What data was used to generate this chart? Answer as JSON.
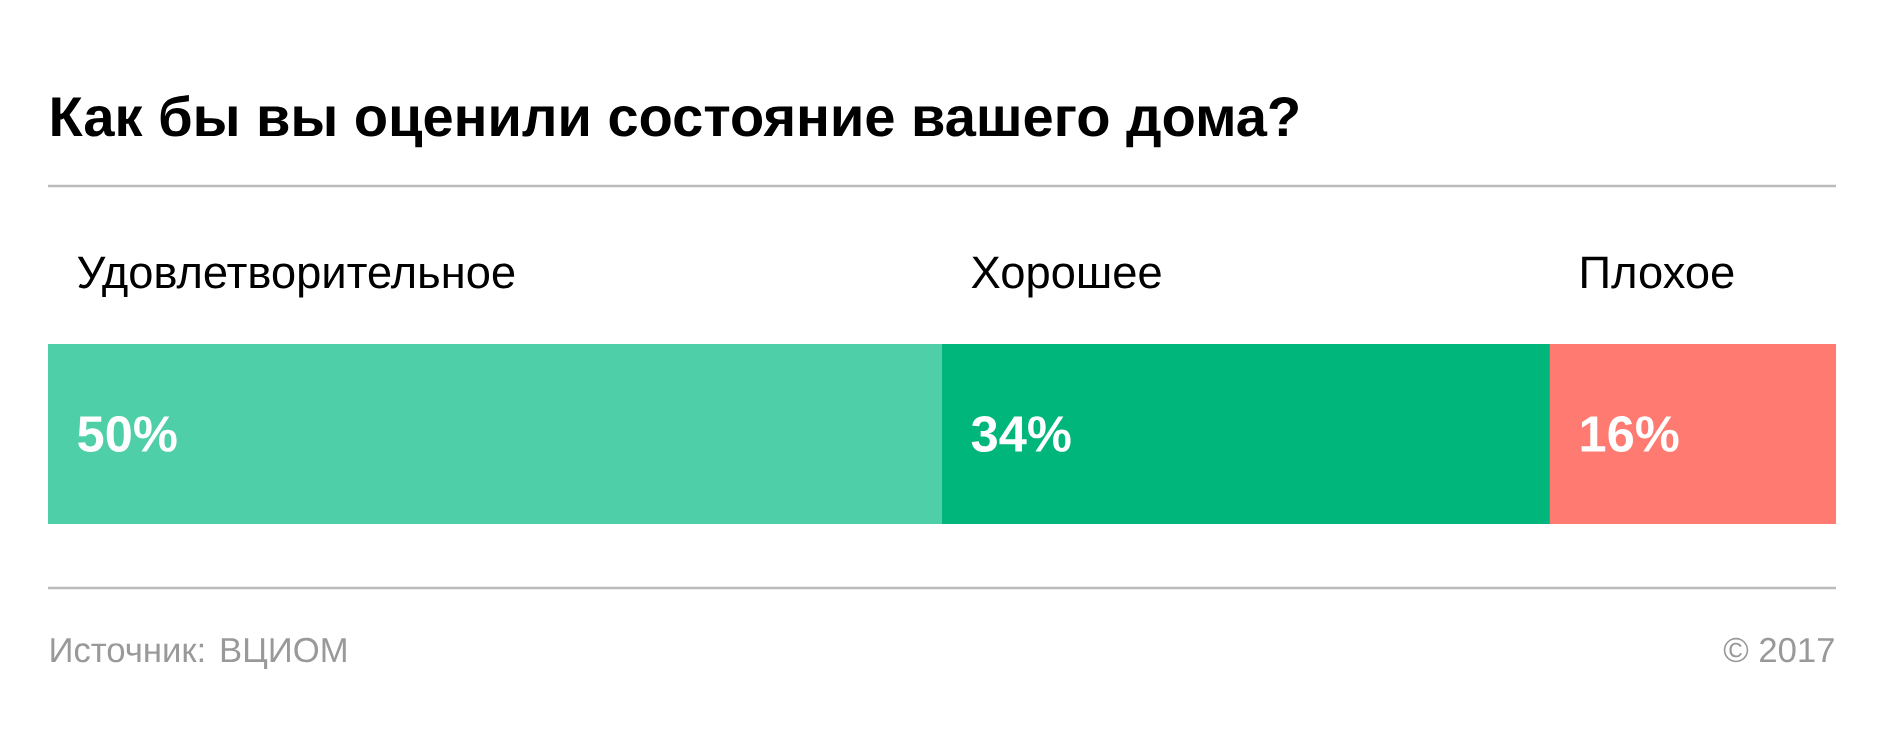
{
  "chart_data": {
    "type": "bar",
    "orientation": "horizontal",
    "stacked": true,
    "title": "Как бы вы оценили состояние вашего дома?",
    "categories": [
      null
    ],
    "series": [
      {
        "name": "Удовлетворительное",
        "color": "#4ecfa7",
        "values": [
          50
        ],
        "value_labels": [
          "50%"
        ]
      },
      {
        "name": "Хорошее",
        "color": "#00b67a",
        "values": [
          34
        ],
        "value_labels": [
          "34%"
        ]
      },
      {
        "name": "Плохое",
        "color": "#ff7b72",
        "values": [
          16
        ],
        "value_labels": [
          "16%"
        ]
      }
    ],
    "legend": false,
    "annotations": [
      "Источник: ВЦИОМ",
      "© 2017"
    ]
  }
}
